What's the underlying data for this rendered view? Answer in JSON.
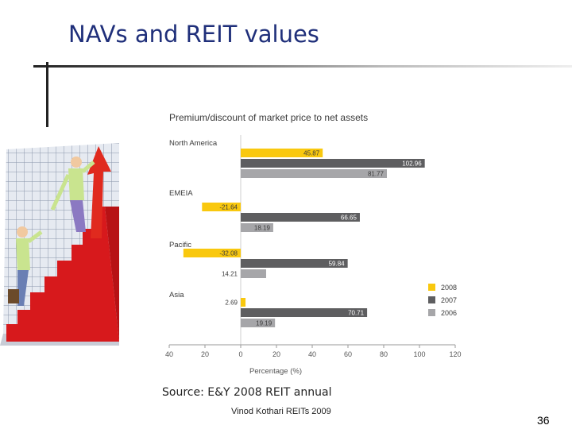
{
  "slide": {
    "title": "NAVs and REIT values",
    "source": "Source: E&Y 2008 REIT annual",
    "footer": "Vinod Kothari REITs 2009",
    "page_number": "36"
  },
  "chart_data": {
    "type": "bar",
    "orientation": "horizontal",
    "title": "Premium/discount of market price to net assets",
    "xlabel": "Percentage (%)",
    "ylabel": "",
    "xlim": [
      -40,
      120
    ],
    "xticks": [
      -40,
      -20,
      0,
      20,
      40,
      60,
      80,
      100,
      120
    ],
    "xtick_labels": [
      "40",
      "20",
      "0",
      "20",
      "40",
      "60",
      "80",
      "100",
      "120"
    ],
    "categories": [
      "North America",
      "EMEIA",
      "Pacific",
      "Asia"
    ],
    "series": [
      {
        "name": "2008",
        "color": "#f9c80e",
        "values": [
          45.87,
          -21.64,
          -32.08,
          2.69
        ],
        "labels": [
          "45.87",
          "-21.64",
          "-32.08",
          "2.69"
        ]
      },
      {
        "name": "2007",
        "color": "#5e5e60",
        "values": [
          102.96,
          66.65,
          59.84,
          70.71
        ],
        "labels": [
          "102.96",
          "66.65",
          "59.84",
          "70.71"
        ]
      },
      {
        "name": "2006",
        "color": "#a6a6a9",
        "values": [
          81.77,
          18.19,
          14.21,
          19.19
        ],
        "labels": [
          "81.77",
          "18.19",
          "14.21",
          "19.19"
        ]
      }
    ],
    "legend": {
      "position": "bottom-right",
      "entries": [
        "2008",
        "2007",
        "2006"
      ]
    },
    "grid": false
  }
}
